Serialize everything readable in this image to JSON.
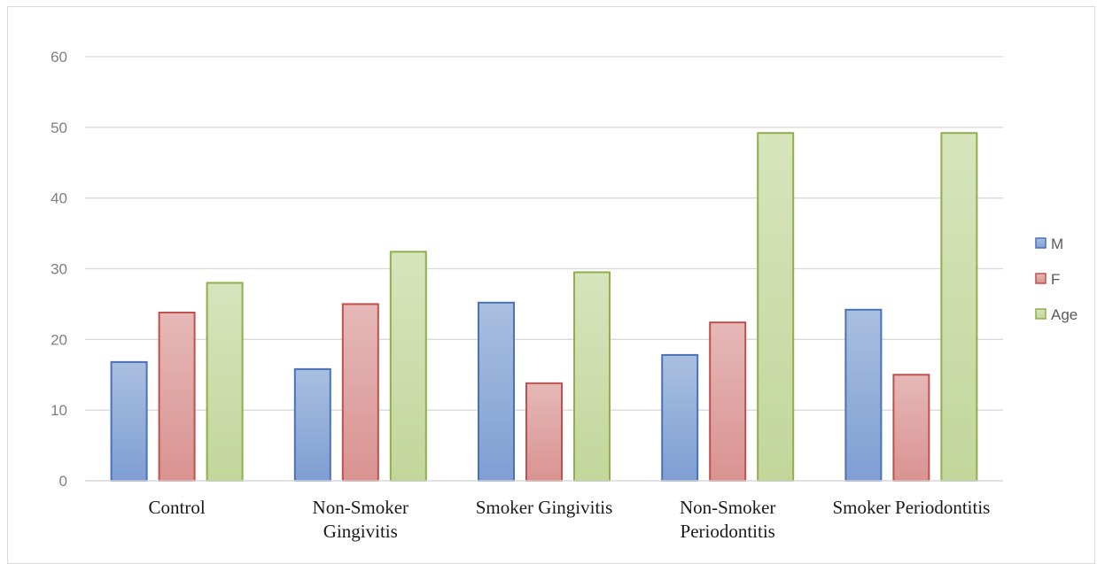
{
  "chart_data": {
    "type": "bar",
    "categories": [
      [
        "Control"
      ],
      [
        "Non-Smoker",
        "Gingivitis"
      ],
      [
        "Smoker Gingivitis"
      ],
      [
        "Non-Smoker",
        "Periodontitis"
      ],
      [
        "Smoker Periodontitis"
      ]
    ],
    "series": [
      {
        "name": "M",
        "values": [
          16.8,
          15.8,
          25.2,
          17.8,
          24.2
        ],
        "fill_top": "#a9bfe0",
        "fill_bottom": "#7f9ed3",
        "stroke": "#4a72b8"
      },
      {
        "name": "F",
        "values": [
          23.8,
          25.0,
          13.8,
          22.4,
          15.0
        ],
        "fill_top": "#e5b8b7",
        "fill_bottom": "#d99391",
        "stroke": "#c0504d"
      },
      {
        "name": "Age",
        "values": [
          28.0,
          32.4,
          29.5,
          49.2,
          49.2
        ],
        "fill_top": "#d7e4bd",
        "fill_bottom": "#c3d69b",
        "stroke": "#8cb04a"
      }
    ],
    "ylim": [
      0,
      60
    ],
    "yticks": [
      0,
      10,
      20,
      30,
      40,
      50,
      60
    ],
    "grid": true,
    "legend_position": "right"
  }
}
